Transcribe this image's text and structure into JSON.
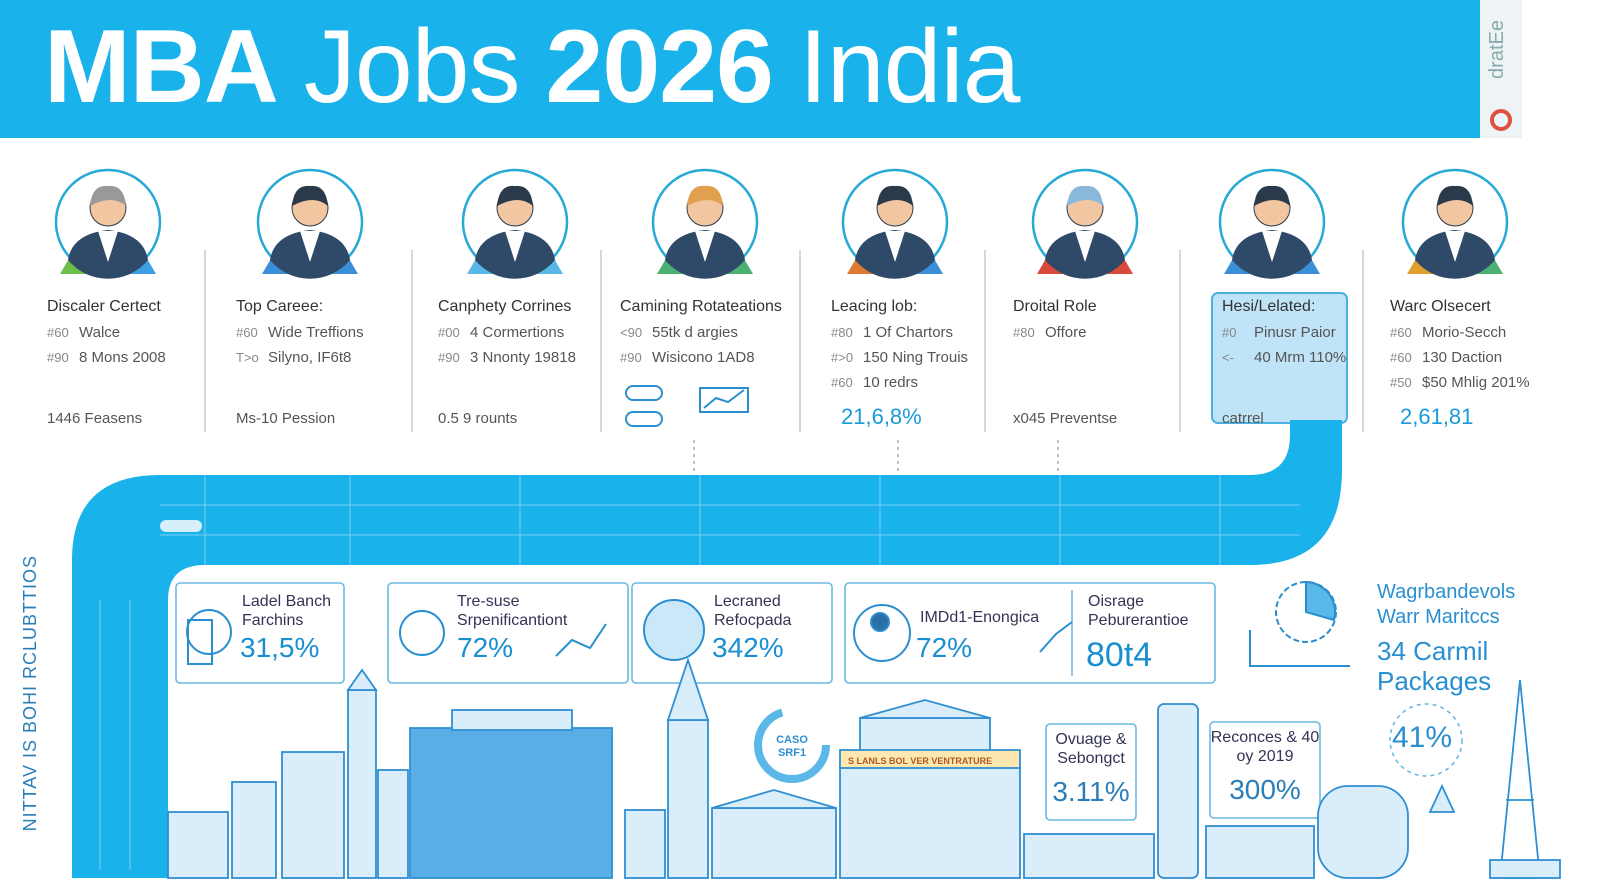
{
  "header": {
    "title_parts": [
      "MBA",
      "Jobs",
      "2026",
      "India"
    ],
    "logo": "dratEe"
  },
  "profiles": [
    {
      "title": "Discaler Certect",
      "lines": [
        {
          "code": "#60",
          "text": "Walce"
        },
        {
          "code": "#90",
          "text": "8 Mons 2008"
        }
      ],
      "footer": "1446 Feasens"
    },
    {
      "title": "Top Careee:",
      "lines": [
        {
          "code": "#60",
          "text": "Wide Treffions"
        },
        {
          "code": "T>o",
          "text": "Silyno, IF6t8"
        }
      ],
      "footer": "Ms-10 Pession"
    },
    {
      "title": "Canphety Corrines",
      "lines": [
        {
          "code": "#00",
          "text": "4 Cormertions"
        },
        {
          "code": "#90",
          "text": "3 Nnonty 19818"
        }
      ],
      "footer": "0.5 9 rounts"
    },
    {
      "title": "Camining Rotateations",
      "lines": [
        {
          "code": "<90",
          "text": "55tk d argies"
        },
        {
          "code": "#90",
          "text": "Wisicono 1AD8"
        }
      ]
    },
    {
      "title": "Leacing lob:",
      "lines": [
        {
          "code": "#80",
          "text": "1 Of Chartors"
        },
        {
          "code": "#>0",
          "text": "150 Ning Trouis"
        },
        {
          "code": "#60",
          "text": "10 redrs"
        }
      ],
      "footer": "21,6,8%"
    },
    {
      "title": "Droital Role",
      "lines": [
        {
          "code": "#80",
          "text": "Offore"
        }
      ],
      "footer": "x045 Preventse"
    },
    {
      "title": "Hesi/Lelated:",
      "lines": [
        {
          "code": "#0",
          "text": "Pinusr Paior"
        },
        {
          "code": "<-",
          "text": "40 Mrm 110%"
        }
      ],
      "footer": "catrrel"
    },
    {
      "title": "Warc Olsecert",
      "lines": [
        {
          "code": "#60",
          "text": "Morio-Secch"
        },
        {
          "code": "#60",
          "text": "130 Daction"
        },
        {
          "code": "#50",
          "text": "$50 Mhlig 201%"
        }
      ],
      "footer": "2,61,81"
    }
  ],
  "side_label": "NITTAV IS BOHI RCLUBTTIOS",
  "stats": [
    {
      "label": "Ladel Banch Farchins",
      "value": "31,5%"
    },
    {
      "label": "Tre-suse Srpenificantiont",
      "value": "72%"
    },
    {
      "label": "Lecraned Refocpada",
      "value": "342%"
    },
    {
      "label": "IMDd1-Enongica",
      "value": "72%"
    },
    {
      "label": "Oisrage Peburerantioe",
      "value": "80t4"
    }
  ],
  "feature": {
    "label": "Wagrbandevols Warr Maritccs",
    "value": "34 Carmil Packages"
  },
  "lower_stats": [
    {
      "label": "Ovuage & Sebongct",
      "value": "3.11%"
    },
    {
      "label": "Reconces & 40 oy 2019",
      "value": "300%"
    }
  ],
  "ring_value": "41%",
  "badge": "CASO SRF1",
  "banner": "S LANLS BOL VER VENTRATURE"
}
